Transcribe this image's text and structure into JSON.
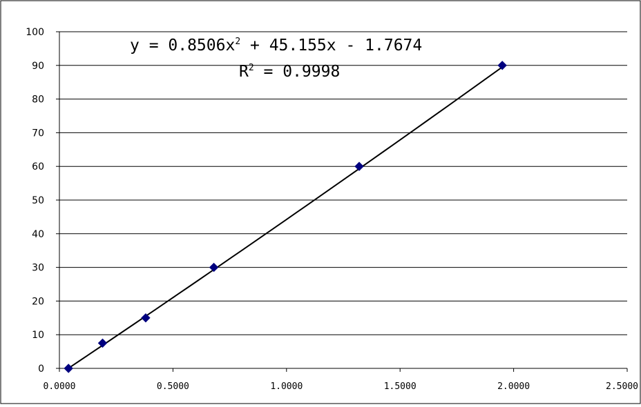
{
  "chart_data": {
    "type": "scatter",
    "x_ticks": [
      "0.0000",
      "0.5000",
      "1.0000",
      "1.5000",
      "2.0000",
      "2.5000"
    ],
    "y_ticks": [
      "0",
      "10",
      "20",
      "30",
      "40",
      "50",
      "60",
      "70",
      "80",
      "90",
      "100"
    ],
    "xlim": [
      0,
      2.5
    ],
    "ylim": [
      0,
      100
    ],
    "grid": "horizontal",
    "series": [
      {
        "x": [
          0.04,
          0.19,
          0.38,
          0.68,
          1.32,
          1.95
        ],
        "y": [
          0,
          7.5,
          15,
          30,
          60,
          90
        ],
        "marker": "diamond",
        "color": "#00007f"
      }
    ],
    "trendline": {
      "type": "polynomial",
      "coefficients": [
        0.8506,
        45.155,
        -1.7674
      ],
      "color": "#000000"
    },
    "equation": {
      "line1_main": "y = 0.8506x",
      "line1_sup": "2",
      "line1_tail": " + 45.155x - 1.7674",
      "line2_main": "R",
      "line2_sup": "2",
      "line2_tail": " = 0.9998"
    }
  }
}
